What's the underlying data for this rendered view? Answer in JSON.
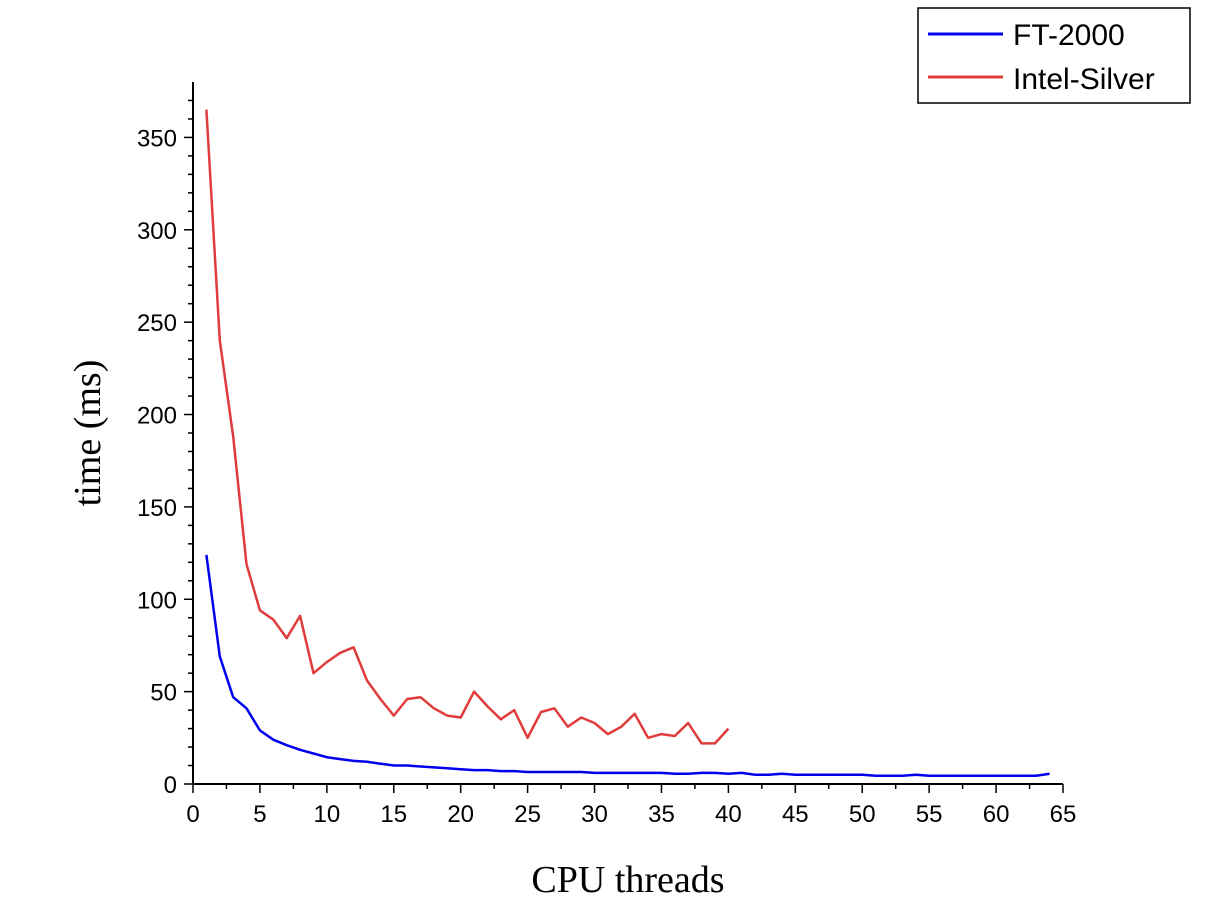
{
  "chart_data": {
    "type": "line",
    "xlabel": "CPU threads",
    "ylabel": "time (ms)",
    "xlim": [
      0,
      65
    ],
    "ylim": [
      0,
      380
    ],
    "xticks": [
      0,
      5,
      10,
      15,
      20,
      25,
      30,
      35,
      40,
      45,
      50,
      55,
      60,
      65
    ],
    "yticks": [
      0,
      50,
      100,
      150,
      200,
      250,
      300,
      350
    ],
    "grid": false,
    "legend_position": "top-right",
    "series": [
      {
        "name": "FT-2000",
        "color": "#0000ee",
        "x": [
          1,
          2,
          3,
          4,
          5,
          6,
          7,
          8,
          9,
          10,
          11,
          12,
          13,
          14,
          15,
          16,
          17,
          18,
          19,
          20,
          21,
          22,
          23,
          24,
          25,
          26,
          27,
          28,
          29,
          30,
          31,
          32,
          33,
          34,
          35,
          36,
          37,
          38,
          39,
          40,
          41,
          42,
          43,
          44,
          45,
          46,
          47,
          48,
          49,
          50,
          51,
          52,
          53,
          54,
          55,
          56,
          57,
          58,
          59,
          60,
          61,
          62,
          63,
          64
        ],
        "y": [
          124,
          69,
          47,
          41,
          29,
          24,
          21,
          18.5,
          16.5,
          14.5,
          13.5,
          12.5,
          12,
          11,
          10,
          10,
          9.5,
          9,
          8.5,
          8,
          7.5,
          7.5,
          7,
          7,
          6.5,
          6.5,
          6.5,
          6.5,
          6.5,
          6,
          6,
          6,
          6,
          6,
          6,
          5.5,
          5.5,
          6,
          6,
          5.5,
          6,
          5,
          5,
          5.5,
          5,
          5,
          5,
          5,
          5,
          5,
          4.5,
          4.5,
          4.5,
          5,
          4.5,
          4.5,
          4.5,
          4.5,
          4.5,
          4.5,
          4.5,
          4.5,
          4.5,
          5.5
        ]
      },
      {
        "name": "Intel-Silver",
        "color": "#e03c3c",
        "x": [
          1,
          2,
          3,
          4,
          5,
          6,
          7,
          8,
          9,
          10,
          11,
          12,
          13,
          14,
          15,
          16,
          17,
          18,
          19,
          20,
          21,
          22,
          23,
          24,
          25,
          26,
          27,
          28,
          29,
          30,
          31,
          32,
          33,
          34,
          35,
          36,
          37,
          38,
          39,
          40
        ],
        "y": [
          365,
          240,
          188,
          119,
          94,
          89,
          79,
          91,
          60,
          66,
          71,
          74,
          56,
          46,
          37,
          46,
          47,
          41,
          37,
          36,
          50,
          42,
          35,
          40,
          25,
          39,
          41,
          31,
          36,
          33,
          27,
          31,
          38,
          25,
          27,
          26,
          33,
          22,
          22,
          30
        ]
      }
    ]
  }
}
